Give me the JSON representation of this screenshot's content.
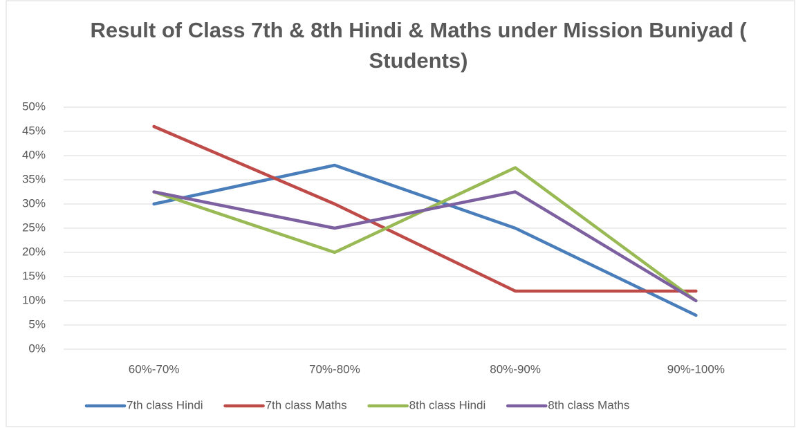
{
  "chart_data": {
    "type": "line",
    "title": "Result of  Class 7th & 8th Hindi & Maths under Mission Buniyad ( Students)",
    "categories": [
      "60%-70%",
      "70%-80%",
      "80%-90%",
      "90%-100%"
    ],
    "series": [
      {
        "name": "7th class Hindi",
        "color": "#4a7ebb",
        "values": [
          30,
          38,
          25,
          7
        ]
      },
      {
        "name": "7th class Maths",
        "color": "#be4b48",
        "values": [
          46,
          30,
          12,
          12
        ]
      },
      {
        "name": "8th class Hindi",
        "color": "#98b954",
        "values": [
          32.5,
          20,
          37.5,
          10
        ]
      },
      {
        "name": "8th class Maths",
        "color": "#7d60a0",
        "values": [
          32.5,
          25,
          32.5,
          10
        ]
      }
    ],
    "ylim": [
      0,
      50
    ],
    "yticks": [
      {
        "value": 0,
        "label": "0%"
      },
      {
        "value": 5,
        "label": "5%"
      },
      {
        "value": 10,
        "label": "10%"
      },
      {
        "value": 15,
        "label": "15%"
      },
      {
        "value": 20,
        "label": "20%"
      },
      {
        "value": 25,
        "label": "25%"
      },
      {
        "value": 30,
        "label": "30%"
      },
      {
        "value": 35,
        "label": "35%"
      },
      {
        "value": 40,
        "label": "40%"
      },
      {
        "value": 45,
        "label": "45%"
      },
      {
        "value": 50,
        "label": "50%"
      }
    ],
    "grid": true,
    "legend": "bottom"
  }
}
